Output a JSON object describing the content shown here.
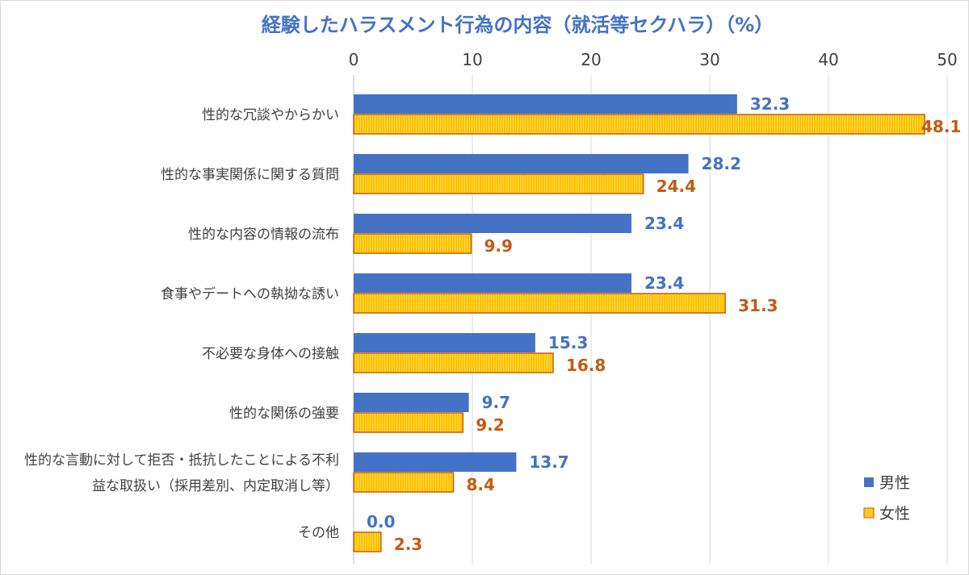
{
  "chart_data": {
    "type": "bar",
    "orientation": "horizontal",
    "title": "経験したハラスメント行為の内容（就活等セクハラ）（%）",
    "categories": [
      [
        "性的な冗談やからかい"
      ],
      [
        "性的な事実関係に関する質問"
      ],
      [
        "性的な内容の情報の流布"
      ],
      [
        "食事やデートへの執拗な誘い"
      ],
      [
        "不必要な身体への接触"
      ],
      [
        "性的な関係の強要"
      ],
      [
        "性的な言動に対して拒否・抵抗したことによる不利",
        "益な取扱い（採用差別、内定取消し等）"
      ],
      [
        "その他"
      ]
    ],
    "series": [
      {
        "name": "男性",
        "values": [
          32.3,
          28.2,
          23.4,
          23.4,
          15.3,
          9.7,
          13.7,
          0.0
        ],
        "color": "#4472c4",
        "label_color": "#4472c4"
      },
      {
        "name": "女性",
        "values": [
          48.1,
          24.4,
          9.9,
          31.3,
          16.8,
          9.2,
          8.4,
          2.3
        ],
        "color": "#ffc000",
        "border": "#c55a11",
        "label_color": "#c55a11"
      }
    ],
    "xlim": [
      0,
      50
    ],
    "xticks": [
      0,
      10,
      20,
      30,
      40,
      50
    ],
    "xaxis_position": "top",
    "grid": true,
    "legend_position": "bottom-right",
    "value_format": "one-decimal"
  }
}
